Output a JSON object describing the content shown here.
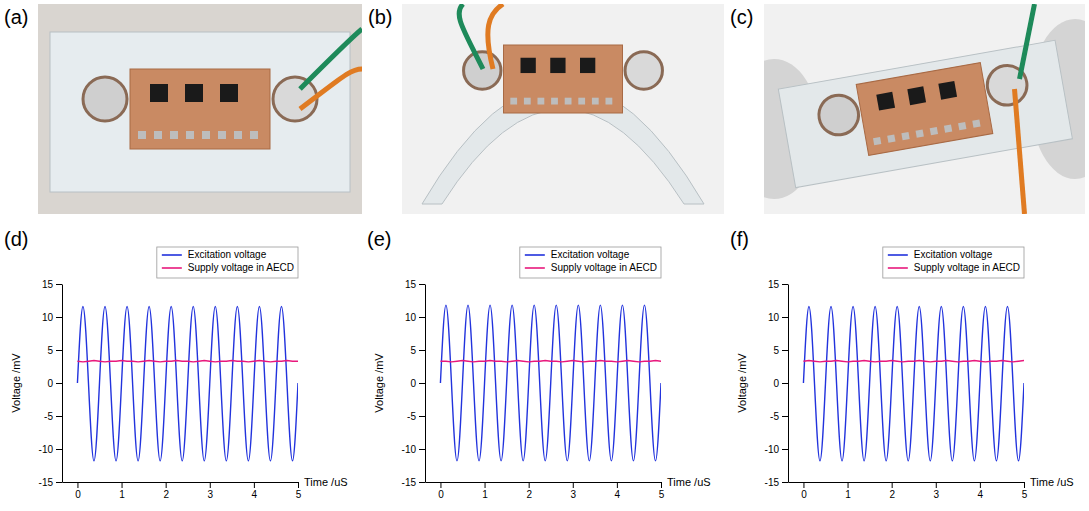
{
  "photos": [
    {
      "label": "(a)"
    },
    {
      "label": "(b)"
    },
    {
      "label": "(c)"
    }
  ],
  "chart_data": [
    {
      "type": "line",
      "title": "(d)",
      "x_label": "Time /uS",
      "y_label": "Voltage /mV",
      "x": [
        0,
        0.125,
        0.25,
        0.375,
        0.5,
        0.625,
        0.75,
        0.875,
        1,
        1.125,
        1.25,
        1.375,
        1.5,
        1.625,
        1.75,
        1.875,
        2,
        2.125,
        2.25,
        2.375,
        2.5,
        2.625,
        2.75,
        2.875,
        3,
        3.125,
        3.25,
        3.375,
        3.5,
        3.625,
        3.75,
        3.875,
        4,
        4.125,
        4.25,
        4.375,
        4.5,
        4.625,
        4.75,
        4.875,
        5
      ],
      "series": [
        {
          "name": "Excitation voltage",
          "color": "#2233dd",
          "line_style": "smooth",
          "values": [
            0,
            11.6,
            0,
            -11.8,
            0,
            11.6,
            0,
            -11.8,
            0,
            11.6,
            0,
            -11.8,
            0,
            11.6,
            0,
            -11.8,
            0,
            11.6,
            0,
            -11.8,
            0,
            11.6,
            0,
            -11.8,
            0,
            11.6,
            0,
            -11.8,
            0,
            11.6,
            0,
            -11.8,
            0,
            11.6,
            0,
            -11.8,
            0,
            11.6,
            0,
            -11.8,
            0
          ]
        },
        {
          "name": "Supply voltage in AECD",
          "color": "#e8187c",
          "line_style": "solid",
          "values": [
            3.3,
            3.2,
            3.3,
            3.4,
            3.3,
            3.2,
            3.3,
            3.3,
            3.4,
            3.3,
            3.3,
            3.2,
            3.3,
            3.4,
            3.3,
            3.2,
            3.3,
            3.3,
            3.4,
            3.3,
            3.3,
            3.2,
            3.3,
            3.4,
            3.3,
            3.2,
            3.3,
            3.3,
            3.4,
            3.3,
            3.3,
            3.2,
            3.3,
            3.4,
            3.3,
            3.2,
            3.3,
            3.3,
            3.4,
            3.3,
            3.3
          ]
        }
      ],
      "xlim": [
        -0.35,
        5
      ],
      "xticks": [
        0,
        1,
        2,
        3,
        4,
        5
      ],
      "ylim": [
        -15,
        15
      ],
      "yticks": [
        -15,
        -10,
        -5,
        0,
        5,
        10,
        15
      ],
      "legend": "top-right",
      "grid": false
    },
    {
      "type": "line",
      "title": "(e)",
      "x_label": "Time /uS",
      "y_label": "Voltage /mV",
      "x": [
        0,
        0.125,
        0.25,
        0.375,
        0.5,
        0.625,
        0.75,
        0.875,
        1,
        1.125,
        1.25,
        1.375,
        1.5,
        1.625,
        1.75,
        1.875,
        2,
        2.125,
        2.25,
        2.375,
        2.5,
        2.625,
        2.75,
        2.875,
        3,
        3.125,
        3.25,
        3.375,
        3.5,
        3.625,
        3.75,
        3.875,
        4,
        4.125,
        4.25,
        4.375,
        4.5,
        4.625,
        4.75,
        4.875,
        5
      ],
      "series": [
        {
          "name": "Excitation voltage",
          "color": "#2233dd",
          "line_style": "smooth",
          "values": [
            0,
            11.8,
            0,
            -11.8,
            0,
            11.8,
            0,
            -11.8,
            0,
            11.8,
            0,
            -11.8,
            0,
            11.8,
            0,
            -11.8,
            0,
            11.8,
            0,
            -11.8,
            0,
            11.8,
            0,
            -11.8,
            0,
            11.8,
            0,
            -11.8,
            0,
            11.8,
            0,
            -11.8,
            0,
            11.8,
            0,
            -11.8,
            0,
            11.8,
            0,
            -11.8,
            0
          ]
        },
        {
          "name": "Supply voltage in AECD",
          "color": "#e8187c",
          "line_style": "solid",
          "values": [
            3.3,
            3.3,
            3.2,
            3.3,
            3.4,
            3.3,
            3.2,
            3.3,
            3.3,
            3.4,
            3.3,
            3.3,
            3.2,
            3.3,
            3.4,
            3.3,
            3.2,
            3.3,
            3.3,
            3.4,
            3.3,
            3.3,
            3.2,
            3.3,
            3.4,
            3.3,
            3.2,
            3.3,
            3.3,
            3.4,
            3.3,
            3.3,
            3.2,
            3.3,
            3.4,
            3.3,
            3.2,
            3.3,
            3.3,
            3.4,
            3.3
          ]
        }
      ],
      "xlim": [
        -0.35,
        5
      ],
      "xticks": [
        0,
        1,
        2,
        3,
        4,
        5
      ],
      "ylim": [
        -15,
        15
      ],
      "yticks": [
        -15,
        -10,
        -5,
        0,
        5,
        10,
        15
      ],
      "legend": "top-right",
      "grid": false
    },
    {
      "type": "line",
      "title": "(f)",
      "x_label": "Time /uS",
      "y_label": "Voltage /mV",
      "x": [
        0,
        0.125,
        0.25,
        0.375,
        0.5,
        0.625,
        0.75,
        0.875,
        1,
        1.125,
        1.25,
        1.375,
        1.5,
        1.625,
        1.75,
        1.875,
        2,
        2.125,
        2.25,
        2.375,
        2.5,
        2.625,
        2.75,
        2.875,
        3,
        3.125,
        3.25,
        3.375,
        3.5,
        3.625,
        3.75,
        3.875,
        4,
        4.125,
        4.25,
        4.375,
        4.5,
        4.625,
        4.75,
        4.875,
        5
      ],
      "series": [
        {
          "name": "Excitation voltage",
          "color": "#2233dd",
          "line_style": "smooth",
          "values": [
            0,
            11.6,
            0,
            -11.8,
            0,
            11.6,
            0,
            -11.8,
            0,
            11.6,
            0,
            -11.8,
            0,
            11.6,
            0,
            -11.8,
            0,
            11.6,
            0,
            -11.8,
            0,
            11.6,
            0,
            -11.8,
            0,
            11.6,
            0,
            -11.8,
            0,
            11.6,
            0,
            -11.8,
            0,
            11.6,
            0,
            -11.8,
            0,
            11.6,
            0,
            -11.8,
            0
          ]
        },
        {
          "name": "Supply voltage in AECD",
          "color": "#e8187c",
          "line_style": "solid",
          "values": [
            3.3,
            3.4,
            3.3,
            3.2,
            3.3,
            3.3,
            3.4,
            3.3,
            3.2,
            3.3,
            3.3,
            3.4,
            3.3,
            3.2,
            3.3,
            3.3,
            3.4,
            3.3,
            3.2,
            3.3,
            3.3,
            3.4,
            3.3,
            3.2,
            3.3,
            3.3,
            3.4,
            3.3,
            3.2,
            3.3,
            3.3,
            3.4,
            3.3,
            3.2,
            3.3,
            3.3,
            3.4,
            3.3,
            3.2,
            3.3,
            3.4
          ]
        }
      ],
      "xlim": [
        -0.35,
        5
      ],
      "xticks": [
        0,
        1,
        2,
        3,
        4,
        5
      ],
      "ylim": [
        -15,
        15
      ],
      "yticks": [
        -15,
        -10,
        -5,
        0,
        5,
        10,
        15
      ],
      "legend": "top-right",
      "grid": false
    }
  ]
}
